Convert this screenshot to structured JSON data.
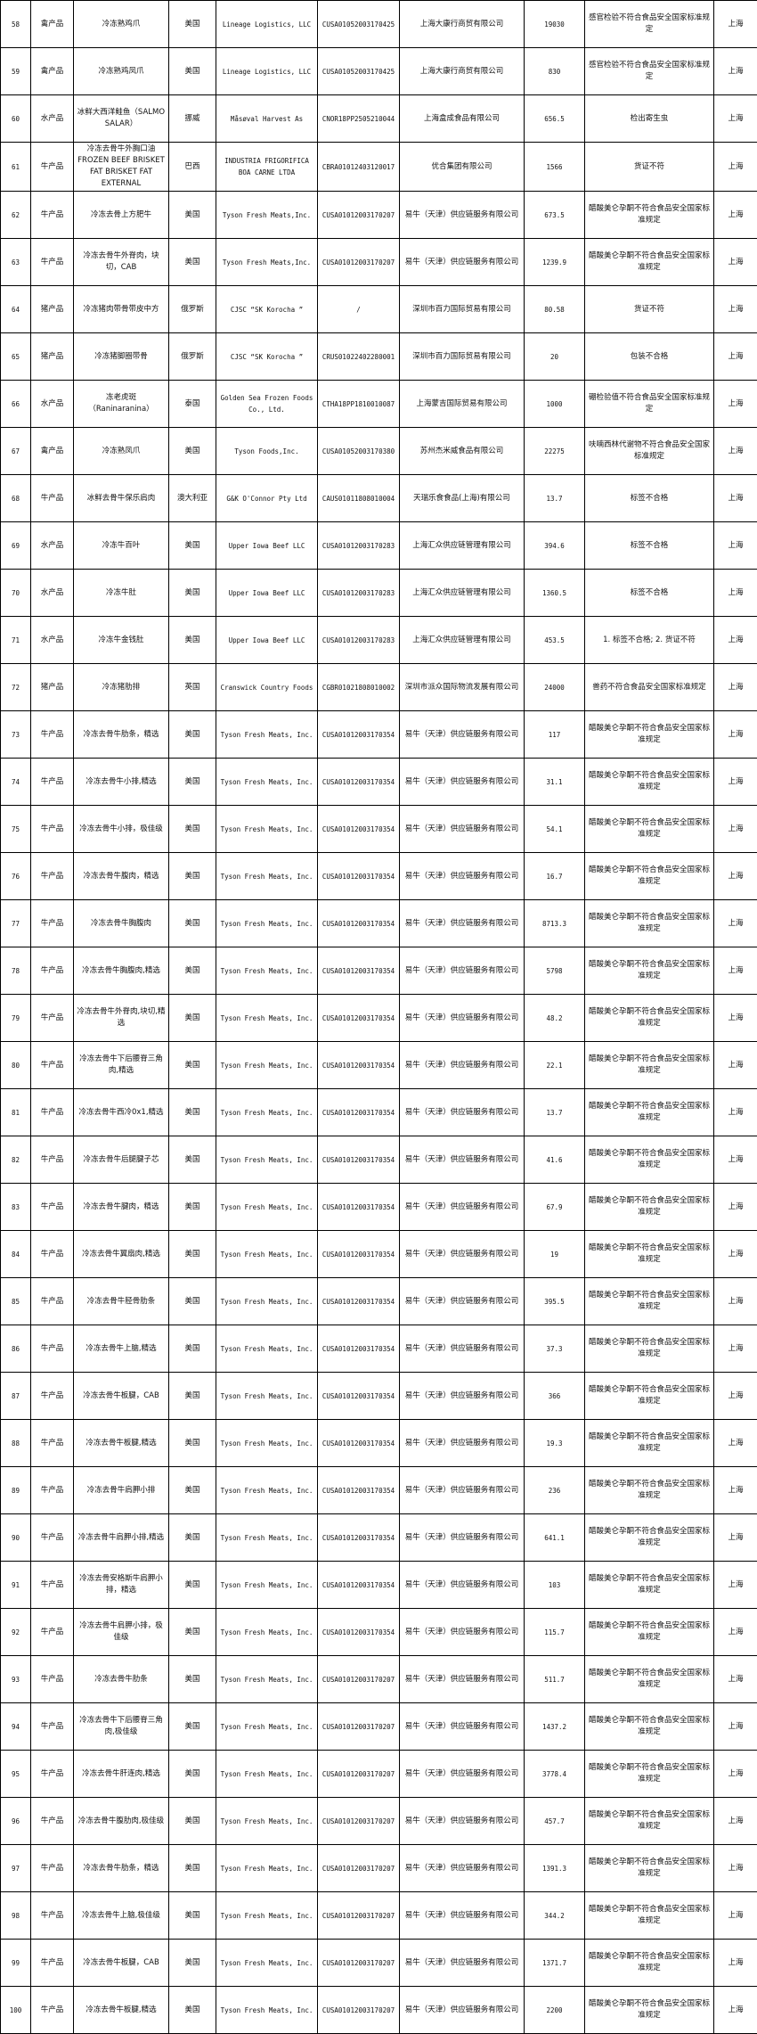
{
  "table": {
    "rows": [
      [
        "58",
        "禽产品",
        "冷冻熟鸡爪",
        "美国",
        "Lineage Logistics, LLC",
        "CUSA01052003170425",
        "上海大康行商贸有限公司",
        "19030",
        "感官检验不符合食品安全国家标准规定",
        "上海"
      ],
      [
        "59",
        "禽产品",
        "冷冻熟鸡凤爪",
        "美国",
        "Lineage Logistics, LLC",
        "CUSA01052003170425",
        "上海大康行商贸有限公司",
        "830",
        "感官检验不符合食品安全国家标准规定",
        "上海"
      ],
      [
        "60",
        "水产品",
        "冰鲜大西洋鲑鱼（SALMO SALAR）",
        "挪威",
        "Måsøval Harvest As",
        "CNOR18PP2505210044",
        "上海盒成食品有限公司",
        "656.5",
        "检出寄生虫",
        "上海"
      ],
      [
        "61",
        "牛产品",
        "冷冻去骨牛外胸口油 FROZEN BEEF BRISKET FAT BRISKET FAT EXTERNAL",
        "巴西",
        "INDUSTRIA FRIGORIFICA BOA CARNE LTDA",
        "CBRA01012403120017",
        "优合集团有限公司",
        "1566",
        "货证不符",
        "上海"
      ],
      [
        "62",
        "牛产品",
        "冷冻去骨上方肥牛",
        "美国",
        "Tyson Fresh Meats,Inc.",
        "CUSA01012003170207",
        "易牛（天津）供应链服务有限公司",
        "673.5",
        "醋酸美仑孕酮不符合食品安全国家标准规定",
        "上海"
      ],
      [
        "63",
        "牛产品",
        "冷冻去骨牛外脊肉，块切，CAB",
        "美国",
        "Tyson Fresh Meats,Inc.",
        "CUSA01012003170207",
        "易牛（天津）供应链服务有限公司",
        "1239.9",
        "醋酸美仑孕酮不符合食品安全国家标准规定",
        "上海"
      ],
      [
        "64",
        "猪产品",
        "冷冻猪肉带骨带皮中方",
        "俄罗斯",
        "CJSC “SK Korocha ”",
        "/",
        "深圳市百力国际贸易有限公司",
        "80.58",
        "货证不符",
        "上海"
      ],
      [
        "65",
        "猪产品",
        "冷冻猪脚圈带骨",
        "俄罗斯",
        "CJSC “SK Korocha ”",
        "CRUS01022402280001",
        "深圳市百力国际贸易有限公司",
        "20",
        "包装不合格",
        "上海"
      ],
      [
        "66",
        "水产品",
        "冻老虎斑（Raninaranina）",
        "泰国",
        "Golden Sea Frozen Foods Co., Ltd.",
        "CTHA18PP1810010087",
        "上海蒙吉国际贸易有限公司",
        "1000",
        "硼检验值不符合食品安全国家标准规定",
        "上海"
      ],
      [
        "67",
        "禽产品",
        "冷冻熟凤爪",
        "美国",
        "Tyson Foods,Inc.",
        "CUSA01052003170380",
        "苏州杰米威食品有限公司",
        "22275",
        "呋喃西林代谢物不符合食品安全国家标准规定",
        "上海"
      ],
      [
        "68",
        "牛产品",
        "冰鲜去骨牛保乐肩肉",
        "澳大利亚",
        "G&K O'Connor Pty Ltd",
        "CAUS01011808010004",
        "天瑞乐食食品(上海)有限公司",
        "13.7",
        "标签不合格",
        "上海"
      ],
      [
        "69",
        "水产品",
        "冷冻牛百叶",
        "美国",
        "Upper Iowa Beef LLC",
        "CUSA01012003170283",
        "上海汇众供应链管理有限公司",
        "394.6",
        "标签不合格",
        "上海"
      ],
      [
        "70",
        "水产品",
        "冷冻牛肚",
        "美国",
        "Upper Iowa Beef LLC",
        "CUSA01012003170283",
        "上海汇众供应链管理有限公司",
        "1360.5",
        "标签不合格",
        "上海"
      ],
      [
        "71",
        "水产品",
        "冷冻牛金钱肚",
        "美国",
        "Upper Iowa Beef LLC",
        "CUSA01012003170283",
        "上海汇众供应链管理有限公司",
        "453.5",
        "1. 标签不合格; 2. 货证不符",
        "上海"
      ],
      [
        "72",
        "猪产品",
        "冷冻猪肋排",
        "英国",
        "Cranswick Country Foods",
        "CGBR01021808010002",
        "深圳市派众国际物流发展有限公司",
        "24000",
        "兽药不符合食品安全国家标准规定",
        "上海"
      ],
      [
        "73",
        "牛产品",
        "冷冻去骨牛肋条，精选",
        "美国",
        "Tyson Fresh Meats, Inc.",
        "CUSA01012003170354",
        "易牛（天津）供应链服务有限公司",
        "117",
        "醋酸美仑孕酮不符合食品安全国家标准规定",
        "上海"
      ],
      [
        "74",
        "牛产品",
        "冷冻去骨牛小排,精选",
        "美国",
        "Tyson Fresh Meats, Inc.",
        "CUSA01012003170354",
        "易牛（天津）供应链服务有限公司",
        "31.1",
        "醋酸美仑孕酮不符合食品安全国家标准规定",
        "上海"
      ],
      [
        "75",
        "牛产品",
        "冷冻去骨牛小排，极佳级",
        "美国",
        "Tyson Fresh Meats, Inc.",
        "CUSA01012003170354",
        "易牛（天津）供应链服务有限公司",
        "54.1",
        "醋酸美仑孕酮不符合食品安全国家标准规定",
        "上海"
      ],
      [
        "76",
        "牛产品",
        "冷冻去骨牛腹肉，精选",
        "美国",
        "Tyson Fresh Meats, Inc.",
        "CUSA01012003170354",
        "易牛（天津）供应链服务有限公司",
        "16.7",
        "醋酸美仑孕酮不符合食品安全国家标准规定",
        "上海"
      ],
      [
        "77",
        "牛产品",
        "冷冻去骨牛胸腹肉",
        "美国",
        "Tyson Fresh Meats, Inc.",
        "CUSA01012003170354",
        "易牛（天津）供应链服务有限公司",
        "8713.3",
        "醋酸美仑孕酮不符合食品安全国家标准规定",
        "上海"
      ],
      [
        "78",
        "牛产品",
        "冷冻去骨牛胸腹肉,精选",
        "美国",
        "Tyson Fresh Meats, Inc.",
        "CUSA01012003170354",
        "易牛（天津）供应链服务有限公司",
        "5798",
        "醋酸美仑孕酮不符合食品安全国家标准规定",
        "上海"
      ],
      [
        "79",
        "牛产品",
        "冷冻去骨牛外脊肉,块切,精选",
        "美国",
        "Tyson Fresh Meats, Inc.",
        "CUSA01012003170354",
        "易牛（天津）供应链服务有限公司",
        "48.2",
        "醋酸美仑孕酮不符合食品安全国家标准规定",
        "上海"
      ],
      [
        "80",
        "牛产品",
        "冷冻去骨牛下后腰脊三角肉,精选",
        "美国",
        "Tyson Fresh Meats, Inc.",
        "CUSA01012003170354",
        "易牛（天津）供应链服务有限公司",
        "22.1",
        "醋酸美仑孕酮不符合食品安全国家标准规定",
        "上海"
      ],
      [
        "81",
        "牛产品",
        "冷冻去骨牛西冷0x1,精选",
        "美国",
        "Tyson Fresh Meats, Inc.",
        "CUSA01012003170354",
        "易牛（天津）供应链服务有限公司",
        "13.7",
        "醋酸美仑孕酮不符合食品安全国家标准规定",
        "上海"
      ],
      [
        "82",
        "牛产品",
        "冷冻去骨牛后腿腱子芯",
        "美国",
        "Tyson Fresh Meats, Inc.",
        "CUSA01012003170354",
        "易牛（天津）供应链服务有限公司",
        "41.6",
        "醋酸美仑孕酮不符合食品安全国家标准规定",
        "上海"
      ],
      [
        "83",
        "牛产品",
        "冷冻去骨牛腱肉，精选",
        "美国",
        "Tyson Fresh Meats, Inc.",
        "CUSA01012003170354",
        "易牛（天津）供应链服务有限公司",
        "67.9",
        "醋酸美仑孕酮不符合食品安全国家标准规定",
        "上海"
      ],
      [
        "84",
        "牛产品",
        "冷冻去骨牛翼扇肉,精选",
        "美国",
        "Tyson Fresh Meats, Inc.",
        "CUSA01012003170354",
        "易牛（天津）供应链服务有限公司",
        "19",
        "醋酸美仑孕酮不符合食品安全国家标准规定",
        "上海"
      ],
      [
        "85",
        "牛产品",
        "冷冻去骨牛胫骨肋条",
        "美国",
        "Tyson Fresh Meats, Inc.",
        "CUSA01012003170354",
        "易牛（天津）供应链服务有限公司",
        "395.5",
        "醋酸美仑孕酮不符合食品安全国家标准规定",
        "上海"
      ],
      [
        "86",
        "牛产品",
        "冷冻去骨牛上脑,精选",
        "美国",
        "Tyson Fresh Meats, Inc.",
        "CUSA01012003170354",
        "易牛（天津）供应链服务有限公司",
        "37.3",
        "醋酸美仑孕酮不符合食品安全国家标准规定",
        "上海"
      ],
      [
        "87",
        "牛产品",
        "冷冻去骨牛板腱，CAB",
        "美国",
        "Tyson Fresh Meats, Inc.",
        "CUSA01012003170354",
        "易牛（天津）供应链服务有限公司",
        "366",
        "醋酸美仑孕酮不符合食品安全国家标准规定",
        "上海"
      ],
      [
        "88",
        "牛产品",
        "冷冻去骨牛板腱,精选",
        "美国",
        "Tyson Fresh Meats, Inc.",
        "CUSA01012003170354",
        "易牛（天津）供应链服务有限公司",
        "19.3",
        "醋酸美仑孕酮不符合食品安全国家标准规定",
        "上海"
      ],
      [
        "89",
        "牛产品",
        "冷冻去骨牛肩胛小排",
        "美国",
        "Tyson Fresh Meats, Inc.",
        "CUSA01012003170354",
        "易牛（天津）供应链服务有限公司",
        "236",
        "醋酸美仑孕酮不符合食品安全国家标准规定",
        "上海"
      ],
      [
        "90",
        "牛产品",
        "冷冻去骨牛肩胛小排,精选",
        "美国",
        "Tyson Fresh Meats, Inc.",
        "CUSA01012003170354",
        "易牛（天津）供应链服务有限公司",
        "641.1",
        "醋酸美仑孕酮不符合食品安全国家标准规定",
        "上海"
      ],
      [
        "91",
        "牛产品",
        "冷冻去骨安格斯牛肩胛小排，精选",
        "美国",
        "Tyson Fresh Meats, Inc.",
        "CUSA01012003170354",
        "易牛（天津）供应链服务有限公司",
        "103",
        "醋酸美仑孕酮不符合食品安全国家标准规定",
        "上海"
      ],
      [
        "92",
        "牛产品",
        "冷冻去骨牛肩胛小排，极佳级",
        "美国",
        "Tyson Fresh Meats, Inc.",
        "CUSA01012003170354",
        "易牛（天津）供应链服务有限公司",
        "115.7",
        "醋酸美仑孕酮不符合食品安全国家标准规定",
        "上海"
      ],
      [
        "93",
        "牛产品",
        "冷冻去骨牛肋条",
        "美国",
        "Tyson Fresh Meats, Inc.",
        "CUSA01012003170207",
        "易牛（天津）供应链服务有限公司",
        "511.7",
        "醋酸美仑孕酮不符合食品安全国家标准规定",
        "上海"
      ],
      [
        "94",
        "牛产品",
        "冷冻去骨牛下后腰脊三角肉,极佳级",
        "美国",
        "Tyson Fresh Meats, Inc.",
        "CUSA01012003170207",
        "易牛（天津）供应链服务有限公司",
        "1437.2",
        "醋酸美仑孕酮不符合食品安全国家标准规定",
        "上海"
      ],
      [
        "95",
        "牛产品",
        "冷冻去骨牛肝连肉,精选",
        "美国",
        "Tyson Fresh Meats, Inc.",
        "CUSA01012003170207",
        "易牛（天津）供应链服务有限公司",
        "3778.4",
        "醋酸美仑孕酮不符合食品安全国家标准规定",
        "上海"
      ],
      [
        "96",
        "牛产品",
        "冷冻去骨牛腹肋肉,极佳级",
        "美国",
        "Tyson Fresh Meats, Inc.",
        "CUSA01012003170207",
        "易牛（天津）供应链服务有限公司",
        "457.7",
        "醋酸美仑孕酮不符合食品安全国家标准规定",
        "上海"
      ],
      [
        "97",
        "牛产品",
        "冷冻去骨牛肋条，精选",
        "美国",
        "Tyson Fresh Meats, Inc.",
        "CUSA01012003170207",
        "易牛（天津）供应链服务有限公司",
        "1391.3",
        "醋酸美仑孕酮不符合食品安全国家标准规定",
        "上海"
      ],
      [
        "98",
        "牛产品",
        "冷冻去骨牛上脑,极佳级",
        "美国",
        "Tyson Fresh Meats, Inc.",
        "CUSA01012003170207",
        "易牛（天津）供应链服务有限公司",
        "344.2",
        "醋酸美仑孕酮不符合食品安全国家标准规定",
        "上海"
      ],
      [
        "99",
        "牛产品",
        "冷冻去骨牛板腱，CAB",
        "美国",
        "Tyson Fresh Meats, Inc.",
        "CUSA01012003170207",
        "易牛（天津）供应链服务有限公司",
        "1371.7",
        "醋酸美仑孕酮不符合食品安全国家标准规定",
        "上海"
      ],
      [
        "100",
        "牛产品",
        "冷冻去骨牛板腱,精选",
        "美国",
        "Tyson Fresh Meats, Inc.",
        "CUSA01012003170207",
        "易牛（天津）供应链服务有限公司",
        "2200",
        "醋酸美仑孕酮不符合食品安全国家标准规定",
        "上海"
      ]
    ]
  }
}
